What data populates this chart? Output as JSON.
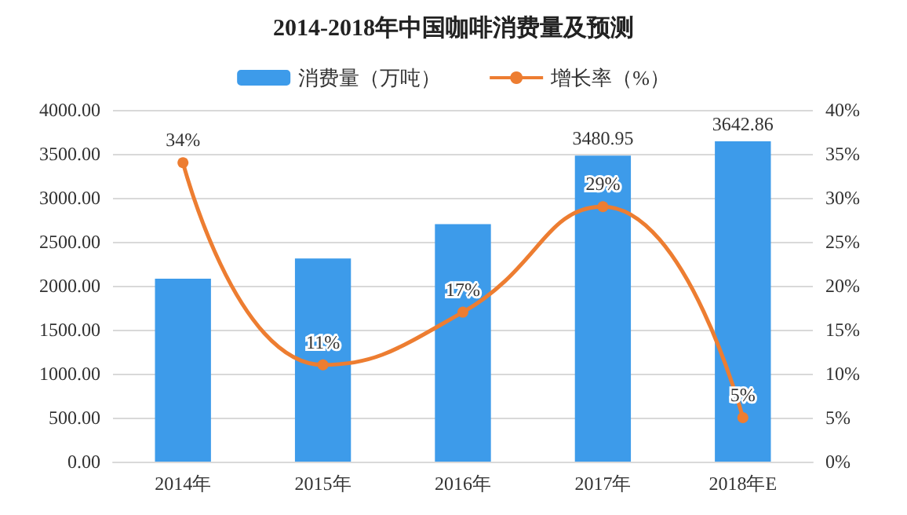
{
  "chart_data": {
    "type": "bar",
    "title": "2014-2018年中国咖啡消费量及预测",
    "categories": [
      "2014年",
      "2015年",
      "2016年",
      "2017年",
      "2018年E"
    ],
    "series": [
      {
        "name": "消费量（万吨）",
        "color": "#3d9bea",
        "values": [
          2080,
          2310,
          2700,
          3480.95,
          3642.86
        ],
        "value_labels": [
          null,
          null,
          null,
          "3480.95",
          "3642.86"
        ]
      },
      {
        "name": "增长率（%）",
        "type": "line",
        "axis": "y2",
        "color": "#ed7d31",
        "values": [
          34,
          11,
          17,
          29,
          5
        ],
        "value_labels": [
          "34%",
          "11%",
          "17%",
          "29%",
          "5%"
        ],
        "marker": "circle"
      }
    ],
    "ylim": [
      0,
      4000
    ],
    "yticks": [
      {
        "value": 0,
        "label": "0.00"
      },
      {
        "value": 500,
        "label": "500.00"
      },
      {
        "value": 1000,
        "label": "1000.00"
      },
      {
        "value": 1500,
        "label": "1500.00"
      },
      {
        "value": 2000,
        "label": "2000.00"
      },
      {
        "value": 2500,
        "label": "2500.00"
      },
      {
        "value": 3000,
        "label": "3000.00"
      },
      {
        "value": 3500,
        "label": "3500.00"
      },
      {
        "value": 4000,
        "label": "4000.00"
      }
    ],
    "y2lim": [
      0,
      40
    ],
    "y2ticks": [
      {
        "value": 0,
        "label": "0%"
      },
      {
        "value": 5,
        "label": "5%"
      },
      {
        "value": 10,
        "label": "10%"
      },
      {
        "value": 15,
        "label": "15%"
      },
      {
        "value": 20,
        "label": "20%"
      },
      {
        "value": 25,
        "label": "25%"
      },
      {
        "value": 30,
        "label": "30%"
      },
      {
        "value": 35,
        "label": "35%"
      },
      {
        "value": 40,
        "label": "40%"
      }
    ],
    "grid": "y",
    "legend": "top"
  }
}
